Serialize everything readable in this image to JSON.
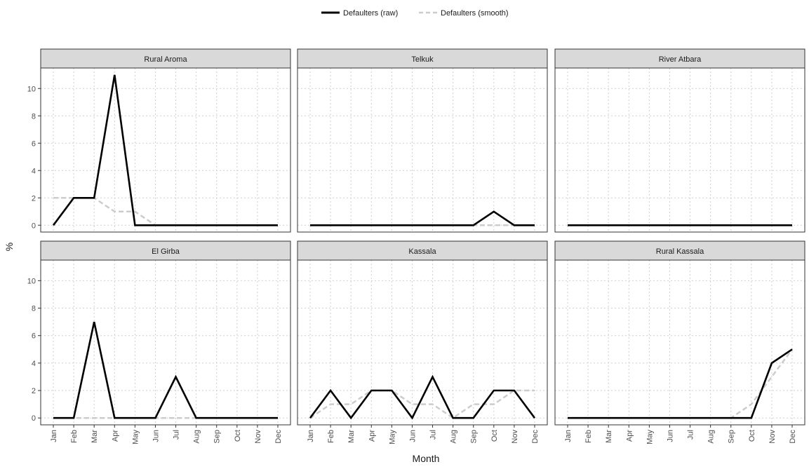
{
  "chart_data": {
    "type": "line",
    "xlabel": "Month",
    "ylabel": "%",
    "ylim": [
      -0.5,
      11.5
    ],
    "yticks": [
      0,
      2,
      4,
      6,
      8,
      10
    ],
    "months": [
      "Jan",
      "Feb",
      "Mar",
      "Apr",
      "May",
      "Jun",
      "Jul",
      "Aug",
      "Sep",
      "Oct",
      "Nov",
      "Dec"
    ],
    "grid": true,
    "legend": {
      "position": "top",
      "entries": [
        {
          "name": "Defaulters (raw)",
          "color": "#000000",
          "style": "solid"
        },
        {
          "name": "Defaulters (smooth)",
          "color": "#cccccc",
          "style": "dashed"
        }
      ]
    },
    "panels": [
      {
        "title": "Rural Aroma",
        "raw": [
          0,
          2,
          2,
          11,
          0,
          0,
          0,
          0,
          0,
          0,
          0,
          0
        ],
        "smooth": [
          2,
          2,
          2,
          1,
          1,
          0,
          0,
          0,
          0,
          0,
          0,
          0
        ]
      },
      {
        "title": "Telkuk",
        "raw": [
          0,
          0,
          0,
          0,
          0,
          0,
          0,
          0,
          0,
          1,
          0,
          0
        ],
        "smooth": [
          0,
          0,
          0,
          0,
          0,
          0,
          0,
          0,
          0,
          0,
          0,
          0
        ]
      },
      {
        "title": "River Atbara",
        "raw": [
          0,
          0,
          0,
          0,
          0,
          0,
          0,
          0,
          0,
          0,
          0,
          0
        ],
        "smooth": [
          0,
          0,
          0,
          0,
          0,
          0,
          0,
          0,
          0,
          0,
          0,
          0
        ]
      },
      {
        "title": "El Girba",
        "raw": [
          0,
          0,
          7,
          0,
          0,
          0,
          3,
          0,
          0,
          0,
          0,
          0
        ],
        "smooth": [
          0,
          0,
          0,
          0,
          0,
          0,
          0,
          0,
          0,
          0,
          0,
          0
        ]
      },
      {
        "title": "Kassala",
        "raw": [
          0,
          2,
          0,
          2,
          2,
          0,
          3,
          0,
          0,
          2,
          2,
          0
        ],
        "smooth": [
          0,
          1,
          1,
          2,
          2,
          1,
          1,
          0,
          1,
          1,
          2,
          2
        ]
      },
      {
        "title": "Rural Kassala",
        "raw": [
          0,
          0,
          0,
          0,
          0,
          0,
          0,
          0,
          0,
          0,
          4,
          5
        ],
        "smooth": [
          0,
          0,
          0,
          0,
          0,
          0,
          0,
          0,
          0,
          1,
          3,
          5
        ]
      }
    ]
  }
}
